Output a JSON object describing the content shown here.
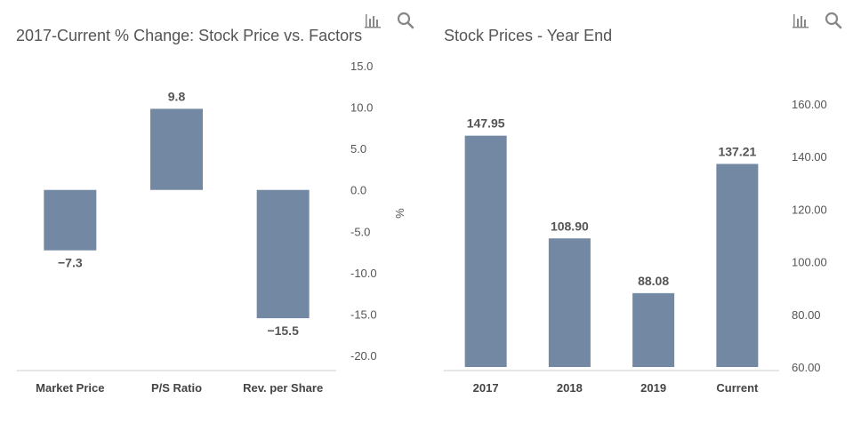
{
  "charts": {
    "left": {
      "title": "2017-Current % Change: Stock Price vs. Factors",
      "unit": "%"
    },
    "right": {
      "title": "Stock Prices - Year End"
    }
  },
  "icons": {
    "chart": "bar-chart-icon",
    "search": "search-icon",
    "color": "#888888"
  },
  "chart_data": [
    {
      "type": "bar",
      "title": "2017-Current % Change: Stock Price vs. Factors",
      "ylabel": "%",
      "categories": [
        "Market Price",
        "P/S Ratio",
        "Rev. per Share"
      ],
      "values": [
        -7.3,
        9.8,
        -15.5
      ],
      "data_labels": [
        "−7.3",
        "9.8",
        "−15.5"
      ],
      "ylim": [
        -20,
        15
      ],
      "yticks": [
        15,
        10,
        5,
        0,
        -5,
        -10,
        -15,
        -20
      ],
      "ytick_labels": [
        "15.0",
        "10.0",
        "5.0",
        "0.0",
        "-5.0",
        "-10.0",
        "-15.0",
        "-20.0"
      ],
      "bar_color": "#7388a2",
      "axis_position": "right",
      "grid": false
    },
    {
      "type": "bar",
      "title": "Stock Prices - Year End",
      "categories": [
        "2017",
        "2018",
        "2019",
        "Current"
      ],
      "values": [
        147.95,
        108.9,
        88.08,
        137.21
      ],
      "data_labels": [
        "147.95",
        "108.90",
        "88.08",
        "137.21"
      ],
      "ylim": [
        60,
        160
      ],
      "yticks": [
        160,
        140,
        120,
        100,
        80,
        60
      ],
      "ytick_labels": [
        "160.00",
        "140.00",
        "120.00",
        "100.00",
        "80.00",
        "60.00"
      ],
      "bar_color": "#7388a2",
      "axis_position": "right",
      "grid": false
    }
  ]
}
